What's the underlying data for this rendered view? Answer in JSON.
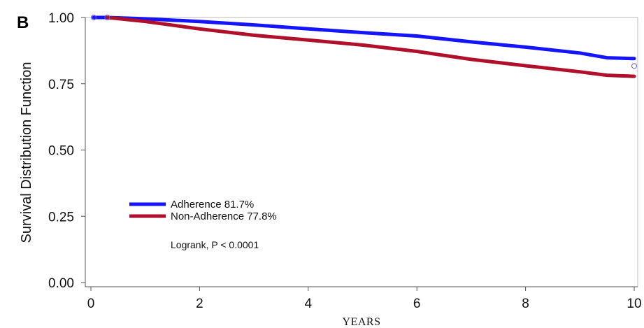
{
  "chart_data": {
    "type": "line",
    "panel_label": "B",
    "xlabel": "YEARS",
    "ylabel": "Survival Distribution Function",
    "xlim": [
      0,
      10
    ],
    "ylim": [
      0,
      1
    ],
    "x_ticks": [
      "0",
      "2",
      "4",
      "6",
      "8",
      "10"
    ],
    "y_ticks": [
      "0.00",
      "0.25",
      "0.50",
      "0.75",
      "1.00"
    ],
    "legend_placement": "lower-left",
    "grid": false,
    "annotation": "Logrank, P < 0.0001",
    "series": [
      {
        "name": "Adherence 81.7%",
        "color": "#1414ff",
        "x": [
          0.05,
          0.3,
          1,
          2,
          3,
          4,
          5,
          6,
          7,
          8,
          9,
          9.5,
          10
        ],
        "y": [
          1.0,
          1.0,
          0.995,
          0.985,
          0.972,
          0.957,
          0.943,
          0.93,
          0.908,
          0.888,
          0.866,
          0.848,
          0.845
        ],
        "censor_end": 0.817
      },
      {
        "name": "Non-Adherence 77.8%",
        "color": "#b0102a",
        "x": [
          0.3,
          1,
          2,
          3,
          4,
          5,
          6,
          7,
          8,
          9,
          9.5,
          10
        ],
        "y": [
          1.0,
          0.985,
          0.957,
          0.933,
          0.915,
          0.896,
          0.872,
          0.842,
          0.818,
          0.795,
          0.782,
          0.778
        ]
      }
    ]
  }
}
